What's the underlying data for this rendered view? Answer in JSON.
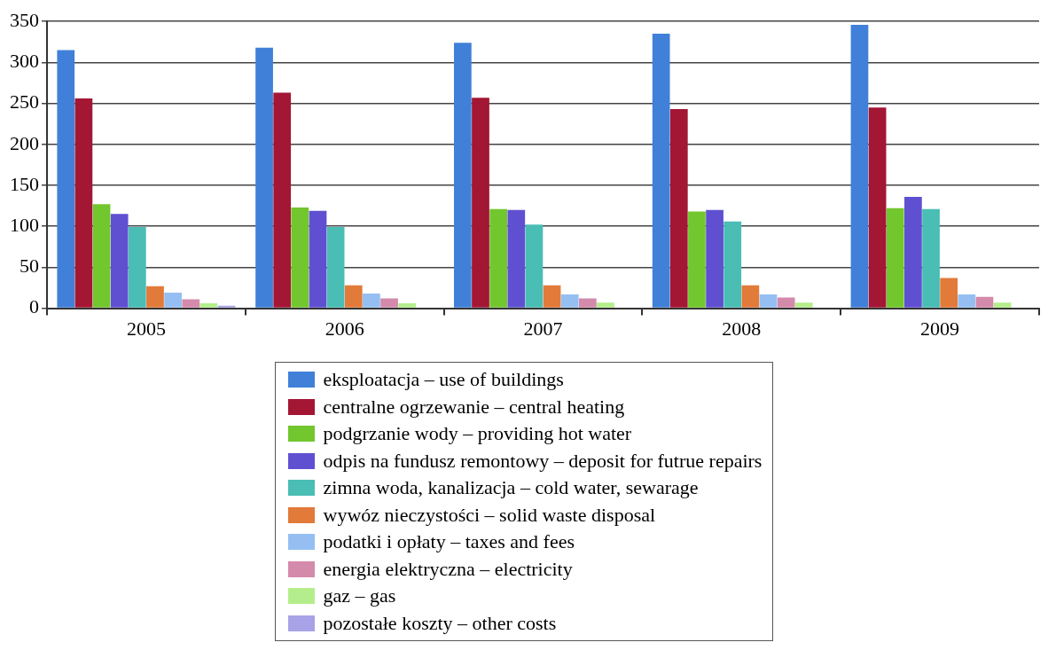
{
  "chart_data": {
    "type": "bar",
    "categories": [
      "2005",
      "2006",
      "2007",
      "2008",
      "2009"
    ],
    "series": [
      {
        "name": "eksploatacja – use of buildings",
        "color": "#4080d8",
        "values": [
          315,
          318,
          324,
          335,
          346
        ]
      },
      {
        "name": "centralne ogrzewanie – central heating",
        "color": "#a31634",
        "values": [
          256,
          263,
          257,
          243,
          245
        ]
      },
      {
        "name": "podgrzanie wody – providing hot water",
        "color": "#72c62e",
        "values": [
          127,
          123,
          121,
          118,
          122
        ]
      },
      {
        "name": "odpis na fundusz remontowy – deposit for futrue repairs",
        "color": "#5f50d2",
        "values": [
          115,
          119,
          120,
          120,
          136
        ]
      },
      {
        "name": "zimna woda, kanalizacja – cold water, sewarage",
        "color": "#4abdb4",
        "values": [
          99,
          99,
          102,
          106,
          121
        ]
      },
      {
        "name": "wywóz nieczystości – solid waste disposal",
        "color": "#e27a3a",
        "values": [
          27,
          28,
          28,
          28,
          37
        ]
      },
      {
        "name": "podatki i opłaty – taxes and fees",
        "color": "#95bff2",
        "values": [
          19,
          18,
          17,
          17,
          17
        ]
      },
      {
        "name": "energia elektryczna – electricity",
        "color": "#d48aab",
        "values": [
          11,
          12,
          12,
          13,
          14
        ]
      },
      {
        "name": "gaz – gas",
        "color": "#b4ee8c",
        "values": [
          6,
          6,
          7,
          7,
          7
        ]
      },
      {
        "name": "pozostałe koszty – other costs",
        "color": "#a7a3e6",
        "values": [
          3,
          null,
          null,
          null,
          null
        ]
      }
    ],
    "ylim": [
      0,
      350
    ],
    "yticks": [
      0,
      50,
      100,
      150,
      200,
      250,
      300,
      350
    ],
    "grid": "y",
    "legend": "bottom"
  }
}
